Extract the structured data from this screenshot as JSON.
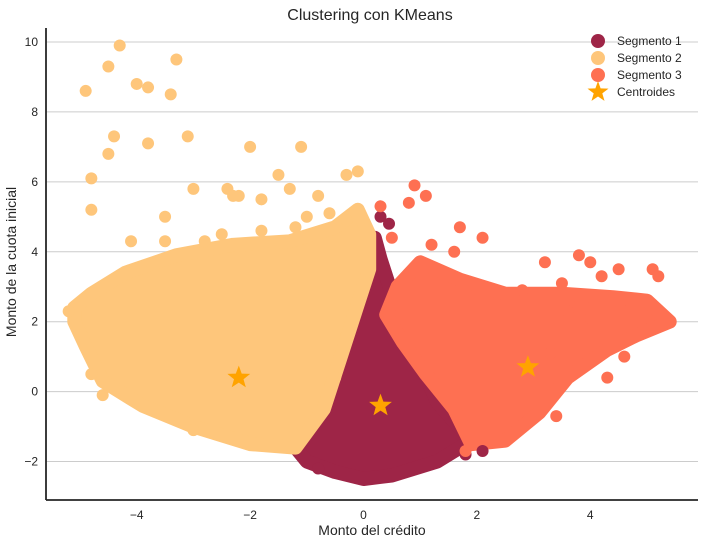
{
  "chart_data": {
    "type": "scatter",
    "title": "Clustering con KMeans",
    "xlabel": "Monto del crédito",
    "ylabel": "Monto de la cuota inicial",
    "xlim": [
      -5.6,
      5.9
    ],
    "ylim": [
      -3.1,
      10.4
    ],
    "xticks": [
      -4,
      -2,
      0,
      2,
      4
    ],
    "yticks": [
      -2,
      0,
      2,
      4,
      6,
      8,
      10
    ],
    "grid": "horizontal",
    "legend_position": "top-right",
    "series": [
      {
        "name": "Segmento 1",
        "color": "#9e2547",
        "cloud": [
          [
            -1.0,
            -2.0
          ],
          [
            -0.5,
            -2.3
          ],
          [
            0.0,
            -2.5
          ],
          [
            0.5,
            -2.4
          ],
          [
            1.3,
            -2.0
          ],
          [
            1.9,
            -1.4
          ],
          [
            1.3,
            -0.3
          ],
          [
            1.0,
            0.8
          ],
          [
            0.8,
            1.8
          ],
          [
            0.5,
            2.8
          ],
          [
            0.3,
            3.8
          ],
          [
            0.2,
            4.4
          ],
          [
            0.0,
            3.8
          ],
          [
            -0.2,
            2.8
          ],
          [
            -0.5,
            1.0
          ],
          [
            -0.8,
            -0.5
          ],
          [
            -1.3,
            -1.4
          ]
        ],
        "outliers": [
          [
            -0.8,
            -2.2
          ],
          [
            0.3,
            5.0
          ],
          [
            0.45,
            4.8
          ],
          [
            2.1,
            -1.7
          ],
          [
            1.8,
            -1.8
          ]
        ]
      },
      {
        "name": "Segmento 2",
        "color": "#fec67b",
        "cloud": [
          [
            -5.1,
            2.4
          ],
          [
            -4.8,
            2.8
          ],
          [
            -4.2,
            3.4
          ],
          [
            -3.3,
            3.9
          ],
          [
            -2.3,
            4.2
          ],
          [
            -1.3,
            4.3
          ],
          [
            -0.5,
            4.7
          ],
          [
            -0.1,
            5.2
          ],
          [
            0.1,
            4.5
          ],
          [
            0.1,
            3.5
          ],
          [
            -0.1,
            2.5
          ],
          [
            -0.4,
            1.0
          ],
          [
            -0.7,
            -0.5
          ],
          [
            -1.2,
            -1.6
          ],
          [
            -2.0,
            -1.5
          ],
          [
            -3.0,
            -1.0
          ],
          [
            -3.9,
            -0.4
          ],
          [
            -4.6,
            0.3
          ],
          [
            -4.9,
            1.3
          ],
          [
            -5.1,
            2.0
          ]
        ],
        "outliers": [
          [
            -4.9,
            8.6
          ],
          [
            -4.5,
            9.3
          ],
          [
            -4.3,
            9.9
          ],
          [
            -4.0,
            8.8
          ],
          [
            -3.8,
            8.7
          ],
          [
            -3.4,
            8.5
          ],
          [
            -3.3,
            9.5
          ],
          [
            -3.1,
            7.3
          ],
          [
            -4.4,
            7.3
          ],
          [
            -4.5,
            6.8
          ],
          [
            -3.8,
            7.1
          ],
          [
            -2.0,
            7.0
          ],
          [
            -1.1,
            7.0
          ],
          [
            -4.8,
            6.1
          ],
          [
            -4.8,
            5.2
          ],
          [
            -3.0,
            5.8
          ],
          [
            -2.4,
            5.8
          ],
          [
            -3.5,
            5.0
          ],
          [
            -2.3,
            5.6
          ],
          [
            -2.2,
            5.6
          ],
          [
            -1.5,
            6.2
          ],
          [
            -1.3,
            5.8
          ],
          [
            -0.3,
            6.2
          ],
          [
            -0.1,
            6.3
          ],
          [
            -0.8,
            5.6
          ],
          [
            -1.8,
            5.5
          ],
          [
            -1.0,
            5.0
          ],
          [
            -0.6,
            5.1
          ],
          [
            -0.3,
            4.9
          ],
          [
            -4.1,
            4.3
          ],
          [
            -3.5,
            4.3
          ],
          [
            -2.8,
            4.3
          ],
          [
            -2.5,
            4.5
          ],
          [
            -1.8,
            4.6
          ],
          [
            -1.2,
            4.7
          ],
          [
            -5.2,
            2.3
          ],
          [
            -4.8,
            0.5
          ],
          [
            -4.6,
            -0.1
          ],
          [
            -3.0,
            -1.1
          ],
          [
            -0.5,
            0.4
          ]
        ]
      },
      {
        "name": "Segmento 3",
        "color": "#fe7052",
        "cloud": [
          [
            0.4,
            2.2
          ],
          [
            0.6,
            3.0
          ],
          [
            1.0,
            3.7
          ],
          [
            1.7,
            3.2
          ],
          [
            2.5,
            2.8
          ],
          [
            3.5,
            2.8
          ],
          [
            4.4,
            2.7
          ],
          [
            5.0,
            2.6
          ],
          [
            5.4,
            2.0
          ],
          [
            4.8,
            1.6
          ],
          [
            4.3,
            1.2
          ],
          [
            3.6,
            0.4
          ],
          [
            3.1,
            -0.6
          ],
          [
            2.5,
            -1.4
          ],
          [
            1.9,
            -1.5
          ],
          [
            1.6,
            -0.5
          ],
          [
            1.1,
            0.5
          ],
          [
            0.7,
            1.4
          ]
        ],
        "outliers": [
          [
            0.3,
            5.3
          ],
          [
            0.8,
            5.4
          ],
          [
            0.9,
            5.9
          ],
          [
            1.1,
            5.6
          ],
          [
            1.7,
            4.7
          ],
          [
            2.1,
            4.4
          ],
          [
            1.2,
            4.2
          ],
          [
            1.6,
            4.0
          ],
          [
            0.5,
            4.4
          ],
          [
            3.2,
            3.7
          ],
          [
            3.8,
            3.9
          ],
          [
            4.0,
            3.7
          ],
          [
            4.2,
            3.3
          ],
          [
            4.5,
            3.5
          ],
          [
            5.1,
            3.5
          ],
          [
            5.2,
            3.3
          ],
          [
            3.5,
            3.1
          ],
          [
            2.8,
            2.9
          ],
          [
            3.6,
            2.3
          ],
          [
            4.0,
            2.1
          ],
          [
            4.6,
            1.0
          ],
          [
            4.3,
            0.4
          ],
          [
            3.4,
            -0.7
          ],
          [
            3.3,
            1.1
          ],
          [
            1.8,
            -1.7
          ]
        ]
      },
      {
        "name": "Centroides",
        "color": "#ffa300",
        "marker": "star",
        "points": [
          [
            -2.2,
            0.4
          ],
          [
            0.3,
            -0.4
          ],
          [
            2.9,
            0.7
          ]
        ]
      }
    ]
  }
}
